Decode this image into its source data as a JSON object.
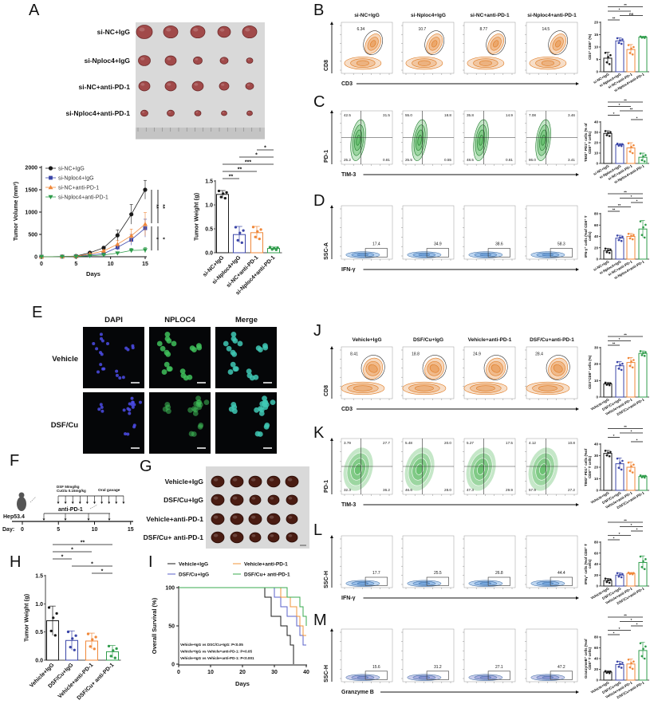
{
  "figure": {
    "panel_letters": [
      "A",
      "B",
      "C",
      "D",
      "E",
      "F",
      "G",
      "H",
      "I",
      "J",
      "K",
      "L",
      "M"
    ],
    "A": {
      "rows": [
        "si-NC+IgG",
        "si-Nploc4+IgG",
        "si-NC+anti-PD-1",
        "si-Nploc4+anti-PD-1"
      ]
    },
    "E": {
      "columns": [
        "DAPI",
        "NPLOC4",
        "Merge"
      ],
      "rows": [
        "Vehicle",
        "DSF/Cu"
      ]
    },
    "F": {
      "cell_line": "Hep53.4",
      "dsf_dose": "DSF  50mg/kg",
      "cu_dose": "CuGlu 0.15mg/kg",
      "route": "Oral gavage",
      "antibody": "anti-PD-1",
      "day_label": "Day:",
      "days": [
        "0",
        "5",
        "10",
        "15"
      ]
    },
    "G": {
      "rows": [
        "Vehicle+IgG",
        "DSF/Cu+IgG",
        "Vehicle+anti-PD-1",
        "DSF/Cu+ anti-PD-1"
      ]
    },
    "flow": {
      "B": {
        "titles": [
          "si-NC+IgG",
          "si-Nploc4+IgG",
          "si-NC+anti-PD-1",
          "si-Nploc4+anti-PD-1"
        ],
        "xlabel": "CD3",
        "ylabel": "CD8",
        "gates": [
          "6.34",
          "10.7",
          "8.77",
          "14.5"
        ]
      },
      "C": {
        "xlabel": "TIM-3",
        "ylabel": "PD-1",
        "quadrants": [
          [
            "42.5",
            "31.5",
            "25.2",
            "0.81"
          ],
          [
            "55.0",
            "18.8",
            "25.5",
            "0.55"
          ],
          [
            "35.8",
            "14.9",
            "48.5",
            "0.81"
          ],
          [
            "7.08",
            "3.46",
            "86.0",
            "3.41"
          ]
        ]
      },
      "D": {
        "xlabel": "IFN-γ",
        "ylabel": "SSC-A",
        "gates": [
          "17.4",
          "34.9",
          "38.6",
          "58.3"
        ]
      },
      "J": {
        "titles": [
          "Vehicle+IgG",
          "DSF/Cu+IgG",
          "Vehicle+anti-PD-1",
          "DSF/Cu+anti-PD-1"
        ],
        "xlabel": "CD3",
        "ylabel": "CD8",
        "gates": [
          "8.41",
          "18.8",
          "24.9",
          "28.4"
        ]
      },
      "K": {
        "xlabel": "TIM-3",
        "ylabel": "PD-1",
        "quadrants": [
          [
            "3.79",
            "27.7",
            "32.3",
            "36.2"
          ],
          [
            "5.48",
            "20.0",
            "46.6",
            "28.0"
          ],
          [
            "5.27",
            "17.5",
            "47.3",
            "29.9"
          ],
          [
            "4.12",
            "10.8",
            "57.9",
            "27.2"
          ]
        ]
      },
      "L": {
        "xlabel": "IFN-γ",
        "ylabel": "SSC-H",
        "gates": [
          "17.7",
          "25.5",
          "26.8",
          "44.4"
        ]
      },
      "M": {
        "xlabel": "Granzyme B",
        "ylabel": "SSC-H",
        "gates": [
          "15.6",
          "31.2",
          "27.1",
          "47.2"
        ]
      }
    }
  },
  "colors": {
    "groups": [
      "#1a1a1a",
      "#3b46a8",
      "#f0883a",
      "#2f9c4b"
    ],
    "survival": [
      "#1a1a1a",
      "#5a62c9",
      "#f0943a",
      "#3aab4f"
    ],
    "cd8_contour": "#e07b22",
    "quad_contour": "#3fae4a",
    "ifn_contour": "#4a90d9",
    "gzmb_contour": "#6a72c8",
    "dapi": "#4c4ce6",
    "nploc4": "#3fbf5a",
    "merge": "#40c8b4"
  },
  "chart_data": [
    {
      "type": "line",
      "xlabel": "Days",
      "ylabel": "Tumor Volume (mm³)",
      "x": [
        0,
        3,
        5,
        7,
        9,
        11,
        13,
        15
      ],
      "xlim": [
        0,
        15
      ],
      "ylim": [
        0,
        2000
      ],
      "xticks": [
        "0",
        "5",
        "10",
        "15"
      ],
      "yticks": [
        "0",
        "500",
        "1000",
        "1500",
        "2000"
      ],
      "series": [
        {
          "name": "si-NC+IgG",
          "values": [
            0,
            5,
            15,
            90,
            200,
            480,
            950,
            1500
          ],
          "sd": [
            0,
            0,
            5,
            20,
            30,
            120,
            220,
            210
          ],
          "marker": "circle"
        },
        {
          "name": "si-Nploc4+IgG",
          "values": [
            0,
            3,
            8,
            40,
            70,
            210,
            380,
            640
          ],
          "sd": [
            0,
            0,
            3,
            10,
            20,
            60,
            120,
            200
          ],
          "marker": "square"
        },
        {
          "name": "si-NC+anti-PD-1",
          "values": [
            0,
            4,
            10,
            60,
            130,
            280,
            470,
            730
          ],
          "sd": [
            0,
            0,
            4,
            15,
            25,
            80,
            150,
            260
          ],
          "marker": "triangle-up"
        },
        {
          "name": "si-Nploc4+anti-PD-1",
          "values": [
            0,
            2,
            5,
            20,
            40,
            80,
            140,
            150
          ],
          "sd": [
            0,
            0,
            2,
            8,
            12,
            30,
            50,
            60
          ],
          "marker": "triangle-down"
        }
      ],
      "significance": [
        "**",
        "**",
        "*",
        "*"
      ],
      "legend": "top-left"
    },
    {
      "type": "bar",
      "ylabel": "Tumor Weight (g)",
      "categories": [
        "si-NC+IgG",
        "si-Nploc4+IgG",
        "si-NC+anti-PD-1",
        "si-Nploc4+anti-PD-1"
      ],
      "values": [
        1.22,
        0.38,
        0.42,
        0.09
      ],
      "sd": [
        0.08,
        0.17,
        0.13,
        0.03
      ],
      "ylim": [
        0,
        1.5
      ],
      "yticks": [
        "0.0",
        "0.5",
        "1.0",
        "1.5"
      ],
      "significance": [
        [
          0,
          1,
          "**"
        ],
        [
          0,
          2,
          "**"
        ],
        [
          0,
          3,
          "***"
        ],
        [
          1,
          3,
          "*"
        ],
        [
          2,
          3,
          "*"
        ]
      ]
    },
    {
      "type": "bar",
      "ylabel": "CD3⁺ CD8⁺ (%)",
      "categories": [
        "si-NC+IgG",
        "si-Nploc4+IgG",
        "si-NC+anti-PD-1",
        "si-Nploc4+anti-PD-1"
      ],
      "values": [
        5.5,
        12.5,
        9.0,
        14.0
      ],
      "sd": [
        2.4,
        1.2,
        2.0,
        0.3
      ],
      "ylim": [
        0,
        20
      ],
      "yticks": [
        "0",
        "5",
        "10",
        "15",
        "20"
      ],
      "significance": [
        [
          0,
          1,
          "**"
        ],
        [
          1,
          3,
          "ns"
        ],
        [
          0,
          2,
          "*"
        ],
        [
          0,
          3,
          "**"
        ]
      ]
    },
    {
      "type": "bar",
      "ylabel": "TIM3⁺ PD1⁺ cells (% of CD8⁺ T cells)",
      "categories": [
        "si-NC+IgG",
        "si-Nploc4+IgG",
        "si-NC+anti-PD-1",
        "si-Nploc4+anti-PD-1"
      ],
      "values": [
        29,
        18,
        15,
        6
      ],
      "sd": [
        2.5,
        1.2,
        5,
        4
      ],
      "ylim": [
        0,
        40
      ],
      "yticks": [
        "0",
        "10",
        "20",
        "30",
        "40"
      ],
      "significance": [
        [
          2,
          3,
          "*"
        ],
        [
          0,
          1,
          "*"
        ],
        [
          1,
          3,
          "**"
        ],
        [
          0,
          2,
          "*"
        ],
        [
          0,
          3,
          "**"
        ]
      ]
    },
    {
      "type": "bar",
      "ylabel": "IFN-γ⁺ cells (%of CD8⁺ T cells)",
      "categories": [
        "si-NC+IgG",
        "si-Nploc4+IgG",
        "si-NC+anti-PD-1",
        "si-Nploc4+anti-PD-1"
      ],
      "values": [
        15,
        37,
        40,
        53
      ],
      "sd": [
        4,
        5,
        5,
        15
      ],
      "ylim": [
        0,
        80
      ],
      "yticks": [
        "0",
        "20",
        "40",
        "60",
        "80"
      ],
      "significance": [
        [
          0,
          1,
          "**"
        ],
        [
          0,
          2,
          "**"
        ],
        [
          2,
          3,
          "*"
        ],
        [
          1,
          3,
          "*"
        ],
        [
          0,
          3,
          "**"
        ]
      ]
    },
    {
      "type": "bar",
      "ylabel": "Tumor Weight (g)",
      "categories": [
        "Vehicle+IgG",
        "DSF/Cu+IgG",
        "Vehicle+anti-PD-1",
        "DSF/Cu+ anti-PD-1"
      ],
      "values": [
        0.7,
        0.35,
        0.34,
        0.15
      ],
      "sd": [
        0.26,
        0.17,
        0.14,
        0.11
      ],
      "ylim": [
        0,
        1.5
      ],
      "yticks": [
        "0.0",
        "0.5",
        "1.0",
        "1.5"
      ],
      "significance": [
        [
          2,
          3,
          "*"
        ],
        [
          1,
          3,
          "*"
        ],
        [
          0,
          1,
          "*"
        ],
        [
          0,
          2,
          "*"
        ],
        [
          0,
          3,
          "**"
        ]
      ]
    },
    {
      "type": "line",
      "subtype": "survival",
      "xlabel": "Days",
      "ylabel": "Overall Survival (%)",
      "xlim": [
        0,
        40
      ],
      "ylim": [
        0,
        100
      ],
      "xticks": [
        "0",
        "10",
        "20",
        "30",
        "40"
      ],
      "yticks": [
        "0",
        "50",
        "100"
      ],
      "series": [
        {
          "name": "Vehicle+IgG",
          "time": [
            0,
            27,
            29,
            32,
            34,
            35,
            36
          ],
          "survival": [
            100,
            87.5,
            62.5,
            50,
            37.5,
            25,
            0
          ]
        },
        {
          "name": "DSF/Cu+IgG",
          "time": [
            0,
            30,
            32,
            34,
            37,
            38,
            39,
            40
          ],
          "survival": [
            100,
            87.5,
            75,
            62.5,
            50,
            37.5,
            25,
            25
          ]
        },
        {
          "name": "Vehicle+anti-PD-1",
          "time": [
            0,
            32,
            35,
            37,
            38,
            39,
            40
          ],
          "survival": [
            100,
            87.5,
            75,
            62.5,
            50,
            37.5,
            37.5
          ]
        },
        {
          "name": "DSF/Cu+ anti-PD-1",
          "time": [
            0,
            34,
            38,
            39,
            40
          ],
          "survival": [
            100,
            87.5,
            75,
            62.5,
            50
          ]
        }
      ],
      "annotations": [
        "Vehicle+IgG vs DSC/Cu+IgG: P<0.05",
        "Vehicle+IgG vs Vehicle+anti-PD-1: P<0.05",
        "Vehicle+IgG vs Vehicle+anti-PD-1: P<0.001"
      ],
      "legend": "top"
    },
    {
      "type": "bar",
      "ylabel": "CD3⁺CD8⁺ cells (%)",
      "categories": [
        "Vehicle+IgG",
        "DSF/Cu+IgG",
        "Vehicle+anti-PD-1",
        "DSF/Cu+anti-PD-1"
      ],
      "values": [
        8,
        19,
        21,
        26.5
      ],
      "sd": [
        0.8,
        2.5,
        3,
        1.5
      ],
      "ylim": [
        0,
        30
      ],
      "yticks": [
        "0",
        "10",
        "20",
        "30"
      ],
      "significance": [
        [
          0,
          1,
          "**"
        ],
        [
          0,
          2,
          "*"
        ],
        [
          0,
          3,
          "**"
        ]
      ]
    },
    {
      "type": "bar",
      "ylabel": "TIM3⁺ PD1⁺ cells (%of CD8⁺ T cells)",
      "categories": [
        "Vehicle+IgG",
        "DSF/Cu+IgG",
        "Vehicle+anti-PD-1",
        "DSF/Cu+anti-PD-1"
      ],
      "values": [
        32,
        23,
        20,
        12
      ],
      "sd": [
        2.5,
        5,
        4.5,
        1
      ],
      "ylim": [
        0,
        40
      ],
      "yticks": [
        "0",
        "10",
        "20",
        "30",
        "40"
      ],
      "significance": [
        [
          2,
          3,
          "*"
        ],
        [
          0,
          1,
          "*"
        ],
        [
          1,
          3,
          "*"
        ],
        [
          0,
          3,
          "**"
        ]
      ]
    },
    {
      "type": "bar",
      "ylabel": "IFNγ⁺ cells (%of CD8⁺ T cells)",
      "categories": [
        "Vehicle+IgG",
        "DSF/Cu+IgG",
        "Vehicle+anti-PD-1",
        "DSF/Cu+anti-PD-1"
      ],
      "values": [
        10,
        20,
        23,
        43
      ],
      "sd": [
        4,
        4,
        1.5,
        12
      ],
      "ylim": [
        0,
        80
      ],
      "yticks": [
        "0",
        "20",
        "40",
        "60",
        "80"
      ],
      "significance": [
        [
          0,
          1,
          "*"
        ],
        [
          0,
          2,
          "*"
        ],
        [
          2,
          3,
          "*"
        ],
        [
          1,
          3,
          "*"
        ],
        [
          0,
          3,
          "**"
        ]
      ]
    },
    {
      "type": "bar",
      "ylabel": "GranzymeB⁺ cells (%of CD8⁺ T cells)",
      "categories": [
        "Vehicle+IgG",
        "DSF/Cu+IgG",
        "Vehicle+anti-PD-1",
        "DSF/Cu+anti-PD-1"
      ],
      "values": [
        15,
        29,
        30,
        55
      ],
      "sd": [
        2,
        6,
        9,
        15
      ],
      "ylim": [
        0,
        80
      ],
      "yticks": [
        "0",
        "20",
        "40",
        "60",
        "80"
      ],
      "significance": [
        [
          0,
          1,
          "*"
        ],
        [
          0,
          2,
          "*"
        ],
        [
          2,
          3,
          "*"
        ],
        [
          1,
          3,
          "*"
        ],
        [
          0,
          3,
          "**"
        ]
      ]
    }
  ]
}
